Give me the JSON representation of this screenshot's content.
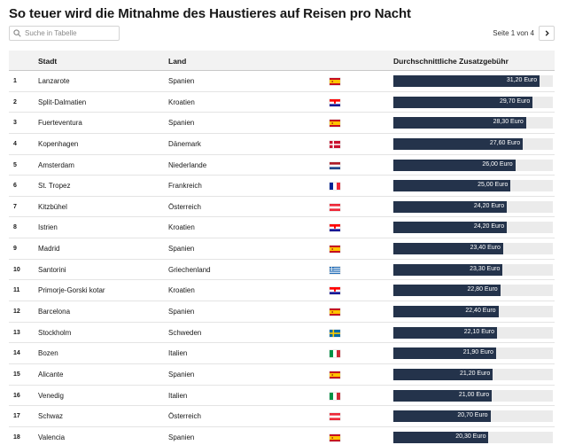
{
  "title": "So teuer wird die Mitnahme des Haustieres auf Reisen pro Nacht",
  "search": {
    "placeholder": "Suche in Tabelle"
  },
  "pager": {
    "text": "Seite 1 von 4"
  },
  "table": {
    "columns": [
      "Stadt",
      "Land",
      "Durchschnittliche Zusatzgebühr"
    ],
    "max_value": 34.0,
    "rows": [
      {
        "rank": "1",
        "city": "Lanzarote",
        "country": "Spanien",
        "flag": "es",
        "value": 31.2,
        "label": "31,20 Euro"
      },
      {
        "rank": "2",
        "city": "Split-Dalmatien",
        "country": "Kroatien",
        "flag": "hr",
        "value": 29.7,
        "label": "29,70 Euro"
      },
      {
        "rank": "3",
        "city": "Fuerteventura",
        "country": "Spanien",
        "flag": "es",
        "value": 28.3,
        "label": "28,30 Euro"
      },
      {
        "rank": "4",
        "city": "Kopenhagen",
        "country": "Dänemark",
        "flag": "dk",
        "value": 27.6,
        "label": "27,60 Euro"
      },
      {
        "rank": "5",
        "city": "Amsterdam",
        "country": "Niederlande",
        "flag": "nl",
        "value": 26.0,
        "label": "26,00 Euro"
      },
      {
        "rank": "6",
        "city": "St. Tropez",
        "country": "Frankreich",
        "flag": "fr",
        "value": 25.0,
        "label": "25,00 Euro"
      },
      {
        "rank": "7",
        "city": "Kitzbühel",
        "country": "Österreich",
        "flag": "at",
        "value": 24.2,
        "label": "24,20 Euro"
      },
      {
        "rank": "8",
        "city": "Istrien",
        "country": "Kroatien",
        "flag": "hr",
        "value": 24.2,
        "label": "24,20 Euro"
      },
      {
        "rank": "9",
        "city": "Madrid",
        "country": "Spanien",
        "flag": "es",
        "value": 23.4,
        "label": "23,40 Euro"
      },
      {
        "rank": "10",
        "city": "Santorini",
        "country": "Griechenland",
        "flag": "gr",
        "value": 23.3,
        "label": "23,30 Euro"
      },
      {
        "rank": "11",
        "city": "Primorje-Gorski kotar",
        "country": "Kroatien",
        "flag": "hr",
        "value": 22.8,
        "label": "22,80 Euro"
      },
      {
        "rank": "12",
        "city": "Barcelona",
        "country": "Spanien",
        "flag": "es",
        "value": 22.4,
        "label": "22,40 Euro"
      },
      {
        "rank": "13",
        "city": "Stockholm",
        "country": "Schweden",
        "flag": "se",
        "value": 22.1,
        "label": "22,10 Euro"
      },
      {
        "rank": "14",
        "city": "Bozen",
        "country": "Italien",
        "flag": "it",
        "value": 21.9,
        "label": "21,90 Euro"
      },
      {
        "rank": "15",
        "city": "Alicante",
        "country": "Spanien",
        "flag": "es",
        "value": 21.2,
        "label": "21,20 Euro"
      },
      {
        "rank": "16",
        "city": "Venedig",
        "country": "Italien",
        "flag": "it",
        "value": 21.0,
        "label": "21,00 Euro"
      },
      {
        "rank": "17",
        "city": "Schwaz",
        "country": "Österreich",
        "flag": "at",
        "value": 20.7,
        "label": "20,70 Euro"
      },
      {
        "rank": "18",
        "city": "Valencia",
        "country": "Spanien",
        "flag": "es",
        "value": 20.3,
        "label": "20,30 Euro"
      }
    ]
  },
  "colors": {
    "bar": "#24334b",
    "track": "#ebebeb",
    "header_bg": "#f2f2f2"
  }
}
